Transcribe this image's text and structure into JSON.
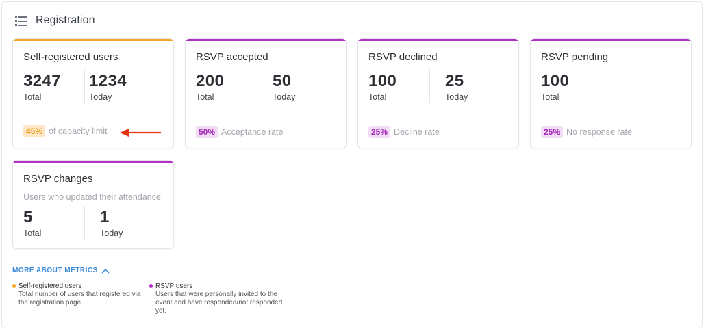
{
  "header": {
    "title": "Registration",
    "icon": "list-icon"
  },
  "colors": {
    "orange": "#f5a623",
    "purple": "#b12fc7",
    "link": "#3a8ad9",
    "arrow": "#e53414"
  },
  "cards": [
    {
      "title": "Self-registered users",
      "accent": "orange",
      "metrics": [
        {
          "value": "3247",
          "label": "Total"
        },
        {
          "value": "1234",
          "label": "Today"
        }
      ],
      "rate": {
        "badge": "45%",
        "text": "of capacity limit"
      }
    },
    {
      "title": "RSVP accepted",
      "accent": "purple",
      "metrics": [
        {
          "value": "200",
          "label": "Total"
        },
        {
          "value": "50",
          "label": "Today"
        }
      ],
      "rate": {
        "badge": "50%",
        "text": "Acceptance rate"
      }
    },
    {
      "title": "RSVP declined",
      "accent": "purple",
      "metrics": [
        {
          "value": "100",
          "label": "Total"
        },
        {
          "value": "25",
          "label": "Today"
        }
      ],
      "rate": {
        "badge": "25%",
        "text": "Decline rate"
      }
    },
    {
      "title": "RSVP pending",
      "accent": "purple",
      "metrics": [
        {
          "value": "100",
          "label": "Total"
        }
      ],
      "rate": {
        "badge": "25%",
        "text": "No response rate"
      }
    },
    {
      "title": "RSVP changes",
      "accent": "purple",
      "subtitle": "Users who updated their attendance",
      "metrics": [
        {
          "value": "5",
          "label": "Total"
        },
        {
          "value": "1",
          "label": "Today"
        }
      ]
    }
  ],
  "more": {
    "label": "MORE ABOUT METRICS",
    "icon": "chevron-up-icon"
  },
  "legend": [
    {
      "title": "Self-registered users",
      "desc": "Total number of users that registered via the registration page.",
      "color": "orange"
    },
    {
      "title": "RSVP users",
      "desc": "Users that were personally invited to the event and have responded/not responded yet.",
      "color": "purple"
    }
  ]
}
